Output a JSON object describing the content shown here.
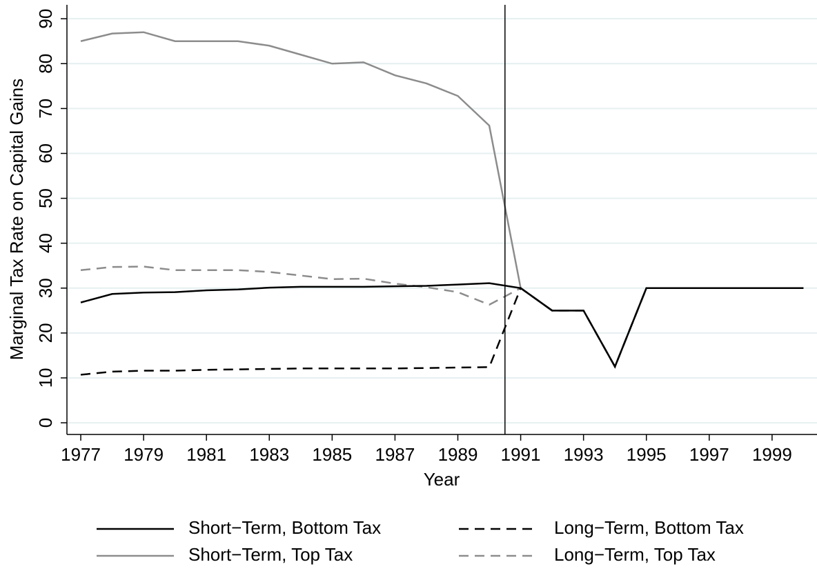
{
  "chart_data": {
    "type": "line",
    "x_label": "Year",
    "y_label": "Marginal Tax Rate on Capital Gains",
    "x": [
      1977,
      1978,
      1979,
      1980,
      1981,
      1982,
      1983,
      1984,
      1985,
      1986,
      1987,
      1988,
      1989,
      1990,
      1991,
      1992,
      1993,
      1994,
      1995,
      1996,
      1997,
      1998,
      1999,
      2000
    ],
    "series": [
      {
        "name": "Short−Term, Bottom Tax",
        "color": "#000000",
        "dash": false,
        "values": [
          26.8,
          28.7,
          29.0,
          29.1,
          29.5,
          29.7,
          30.1,
          30.3,
          30.3,
          30.3,
          30.4,
          30.5,
          30.8,
          31.1,
          30,
          25,
          25,
          12.5,
          30,
          30,
          30,
          30,
          30,
          30
        ]
      },
      {
        "name": "Long−Term, Bottom Tax",
        "color": "#000000",
        "dash": true,
        "values": [
          10.7,
          11.4,
          11.6,
          11.6,
          11.8,
          11.9,
          12.0,
          12.1,
          12.1,
          12.1,
          12.1,
          12.2,
          12.3,
          12.4,
          30,
          25,
          25,
          12.5,
          30,
          30,
          30,
          30,
          30,
          30
        ]
      },
      {
        "name": "Short−Term, Top Tax",
        "color": "#8c8c8c",
        "dash": false,
        "values": [
          85,
          86.7,
          87,
          85,
          85,
          85,
          84,
          82,
          80,
          80.3,
          77.4,
          75.6,
          72.8,
          66.2,
          30,
          25,
          25,
          12.5,
          30,
          30,
          30,
          30,
          30,
          30
        ]
      },
      {
        "name": "Long−Term, Top Tax",
        "color": "#8c8c8c",
        "dash": true,
        "values": [
          34,
          34.7,
          34.8,
          34,
          34,
          34,
          33.6,
          32.8,
          32,
          32.1,
          31,
          30.2,
          29.1,
          26.3,
          30,
          25,
          25,
          12.5,
          30,
          30,
          30,
          30,
          30,
          30
        ]
      }
    ],
    "vline": 1990.5,
    "xlim": [
      1976.56,
      2000.43
    ],
    "ylim": [
      -2.6,
      93.1
    ],
    "xticks": [
      1977,
      1979,
      1981,
      1983,
      1985,
      1987,
      1989,
      1991,
      1993,
      1995,
      1997,
      1999
    ],
    "yticks": [
      0,
      10,
      20,
      30,
      40,
      50,
      60,
      70,
      80,
      90
    ],
    "grid": true,
    "legend": "bottom"
  }
}
